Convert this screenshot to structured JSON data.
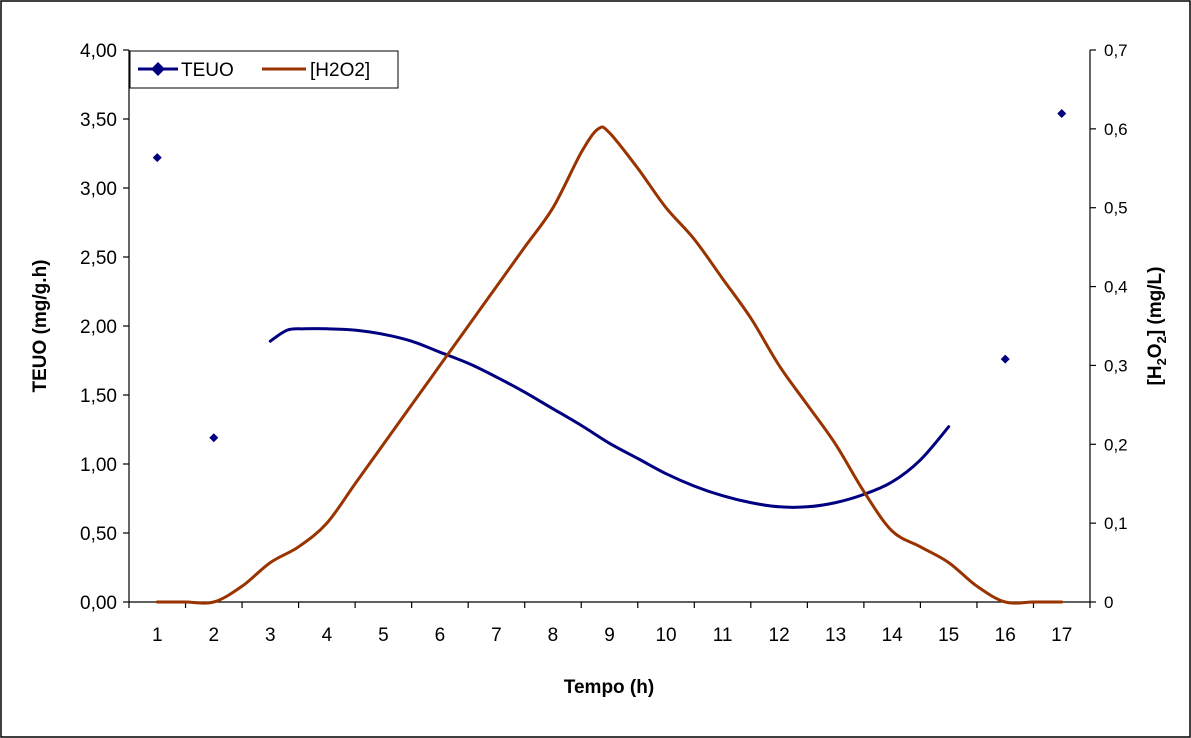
{
  "chart_data": {
    "type": "line",
    "title": "",
    "xlabel": "Tempo (h)",
    "ylabel_left": "TEUO (mg/g.h)",
    "ylabel_right": {
      "main": "[H",
      "sub1": "2",
      "mid": "O",
      "sub2": "2",
      "end": "] (mg/L)"
    },
    "categories": [
      "1",
      "2",
      "3",
      "4",
      "5",
      "6",
      "7",
      "8",
      "9",
      "10",
      "11",
      "12",
      "13",
      "14",
      "15",
      "16",
      "17"
    ],
    "x": [
      1,
      2,
      3,
      4,
      5,
      6,
      7,
      8,
      9,
      10,
      11,
      12,
      13,
      14,
      15,
      16,
      17
    ],
    "ylim_left": [
      0,
      4
    ],
    "yticks_left": [
      "0,00",
      "0,50",
      "1,00",
      "1,50",
      "2,00",
      "2,50",
      "3,00",
      "3,50",
      "4,00"
    ],
    "ylim_right": [
      0,
      0.7
    ],
    "yticks_right": [
      "0",
      "0,1",
      "0,2",
      "0,3",
      "0,4",
      "0,5",
      "0,6",
      "0,7"
    ],
    "grid": false,
    "legend_position": "top-left",
    "series": [
      {
        "name": "TEUO",
        "axis": "left",
        "color": "#000080",
        "marker": "diamond",
        "points": [
          {
            "x": 1,
            "y": 3.22
          },
          {
            "x": 2,
            "y": 1.19
          },
          {
            "x": 16,
            "y": 1.76
          },
          {
            "x": 17,
            "y": 3.54
          }
        ],
        "curve": [
          {
            "x": 3.0,
            "y": 1.89
          },
          {
            "x": 3.3,
            "y": 1.97
          },
          {
            "x": 3.6,
            "y": 1.98
          },
          {
            "x": 4.0,
            "y": 1.98
          },
          {
            "x": 4.5,
            "y": 1.97
          },
          {
            "x": 5.0,
            "y": 1.94
          },
          {
            "x": 5.5,
            "y": 1.89
          },
          {
            "x": 6.0,
            "y": 1.81
          },
          {
            "x": 6.5,
            "y": 1.73
          },
          {
            "x": 7.0,
            "y": 1.63
          },
          {
            "x": 7.5,
            "y": 1.52
          },
          {
            "x": 8.0,
            "y": 1.4
          },
          {
            "x": 8.5,
            "y": 1.28
          },
          {
            "x": 9.0,
            "y": 1.15
          },
          {
            "x": 9.5,
            "y": 1.04
          },
          {
            "x": 10.0,
            "y": 0.93
          },
          {
            "x": 10.5,
            "y": 0.84
          },
          {
            "x": 11.0,
            "y": 0.77
          },
          {
            "x": 11.5,
            "y": 0.72
          },
          {
            "x": 12.0,
            "y": 0.69
          },
          {
            "x": 12.5,
            "y": 0.69
          },
          {
            "x": 13.0,
            "y": 0.72
          },
          {
            "x": 13.5,
            "y": 0.78
          },
          {
            "x": 14.0,
            "y": 0.87
          },
          {
            "x": 14.5,
            "y": 1.03
          },
          {
            "x": 15.0,
            "y": 1.27
          }
        ]
      },
      {
        "name": "[H2O2]",
        "axis": "right",
        "color": "#993300",
        "curve": [
          {
            "x": 1.0,
            "y": 0.0
          },
          {
            "x": 1.5,
            "y": 0.0
          },
          {
            "x": 2.0,
            "y": 0.0
          },
          {
            "x": 2.5,
            "y": 0.02
          },
          {
            "x": 3.0,
            "y": 0.05
          },
          {
            "x": 3.5,
            "y": 0.07
          },
          {
            "x": 4.0,
            "y": 0.1
          },
          {
            "x": 4.5,
            "y": 0.15
          },
          {
            "x": 5.0,
            "y": 0.2
          },
          {
            "x": 5.5,
            "y": 0.25
          },
          {
            "x": 6.0,
            "y": 0.3
          },
          {
            "x": 6.5,
            "y": 0.35
          },
          {
            "x": 7.0,
            "y": 0.4
          },
          {
            "x": 7.5,
            "y": 0.45
          },
          {
            "x": 8.0,
            "y": 0.5
          },
          {
            "x": 8.5,
            "y": 0.57
          },
          {
            "x": 8.8,
            "y": 0.6
          },
          {
            "x": 9.0,
            "y": 0.595
          },
          {
            "x": 9.5,
            "y": 0.55
          },
          {
            "x": 10.0,
            "y": 0.5
          },
          {
            "x": 10.5,
            "y": 0.46
          },
          {
            "x": 11.0,
            "y": 0.41
          },
          {
            "x": 11.5,
            "y": 0.36
          },
          {
            "x": 12.0,
            "y": 0.3
          },
          {
            "x": 12.5,
            "y": 0.25
          },
          {
            "x": 13.0,
            "y": 0.2
          },
          {
            "x": 13.5,
            "y": 0.14
          },
          {
            "x": 14.0,
            "y": 0.09
          },
          {
            "x": 14.5,
            "y": 0.07
          },
          {
            "x": 15.0,
            "y": 0.05
          },
          {
            "x": 15.5,
            "y": 0.02
          },
          {
            "x": 16.0,
            "y": 0.0
          },
          {
            "x": 16.5,
            "y": 0.0
          },
          {
            "x": 17.0,
            "y": 0.0
          }
        ]
      }
    ]
  }
}
